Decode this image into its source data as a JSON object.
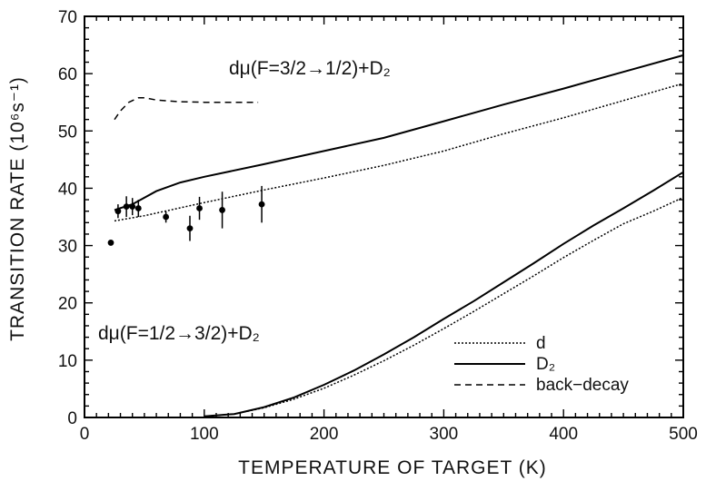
{
  "chart_data": {
    "type": "line",
    "title": "",
    "xlabel": "TEMPERATURE OF TARGET (K)",
    "ylabel": "TRANSITION RATE (10⁶s⁻¹)",
    "xlim": [
      0,
      500
    ],
    "ylim": [
      0,
      70
    ],
    "x_ticks": [
      "0",
      "100",
      "200",
      "300",
      "400",
      "500"
    ],
    "y_ticks": [
      "0",
      "10",
      "20",
      "30",
      "40",
      "50",
      "60",
      "70"
    ],
    "grid": false,
    "legend_position": "bottom-right",
    "legend": [
      {
        "label": "d",
        "style": "dotted"
      },
      {
        "label": "D₂",
        "style": "solid"
      },
      {
        "label": "back−decay",
        "style": "dashed"
      }
    ],
    "annotations": [
      {
        "text": "dμ(F=3/2→1/2)+D₂",
        "x": 320,
        "y": 59
      },
      {
        "text": "dμ(F=1/2→3/2)+D₂",
        "x": 100,
        "y": 13
      }
    ],
    "series": [
      {
        "name": "D₂",
        "group": "upper",
        "style": "solid",
        "x": [
          25,
          40,
          60,
          80,
          100,
          150,
          200,
          250,
          300,
          350,
          400,
          450,
          500
        ],
        "y": [
          36.2,
          37.2,
          39.5,
          41.0,
          42.0,
          44.2,
          46.5,
          48.8,
          51.7,
          54.6,
          57.4,
          60.3,
          63.2
        ]
      },
      {
        "name": "d",
        "group": "upper",
        "style": "dotted",
        "x": [
          25,
          50,
          100,
          150,
          200,
          250,
          300,
          350,
          400,
          450,
          500
        ],
        "y": [
          34.3,
          35.2,
          37.5,
          39.7,
          41.8,
          44.0,
          46.5,
          49.5,
          52.3,
          55.3,
          58.3
        ]
      },
      {
        "name": "back−decay",
        "group": "upper",
        "style": "dashed",
        "x": [
          25,
          30,
          37,
          45,
          50,
          60,
          80,
          100,
          120,
          145
        ],
        "y": [
          52.0,
          53.5,
          55.0,
          55.8,
          55.8,
          55.4,
          55.1,
          55.0,
          55.0,
          55.0
        ]
      },
      {
        "name": "D₂",
        "group": "lower",
        "style": "solid",
        "x": [
          100,
          125,
          150,
          175,
          200,
          225,
          250,
          275,
          300,
          325,
          350,
          375,
          400,
          425,
          450,
          475,
          500
        ],
        "y": [
          0.2,
          0.6,
          1.8,
          3.5,
          5.7,
          8.2,
          11.0,
          14.0,
          17.2,
          20.3,
          23.6,
          26.9,
          30.3,
          33.5,
          36.5,
          39.6,
          42.8
        ]
      },
      {
        "name": "d",
        "group": "lower",
        "style": "dotted",
        "x": [
          100,
          125,
          150,
          175,
          200,
          225,
          250,
          275,
          300,
          325,
          350,
          375,
          400,
          425,
          450,
          475,
          500
        ],
        "y": [
          0.2,
          0.6,
          1.7,
          3.2,
          5.1,
          7.4,
          9.9,
          12.6,
          15.5,
          18.5,
          21.6,
          24.7,
          27.9,
          30.9,
          33.8,
          36.0,
          38.4
        ]
      }
    ],
    "data_points": [
      {
        "x": 22,
        "y": 30.5
      },
      {
        "x": 28,
        "y": 36.0,
        "yerr": 1.2
      },
      {
        "x": 35,
        "y": 36.8,
        "yerr": 1.8
      },
      {
        "x": 40,
        "y": 36.8,
        "yerr": 1.5
      },
      {
        "x": 45,
        "y": 36.5,
        "yerr": 1.5
      },
      {
        "x": 68,
        "y": 35.0,
        "yerr": 1.0
      },
      {
        "x": 88,
        "y": 33.0,
        "yerr": 2.2
      },
      {
        "x": 96,
        "y": 36.5,
        "yerr": 2.0
      },
      {
        "x": 115,
        "y": 36.2,
        "yerr": 3.2
      },
      {
        "x": 148,
        "y": 37.2,
        "yerr": 3.2
      }
    ]
  }
}
